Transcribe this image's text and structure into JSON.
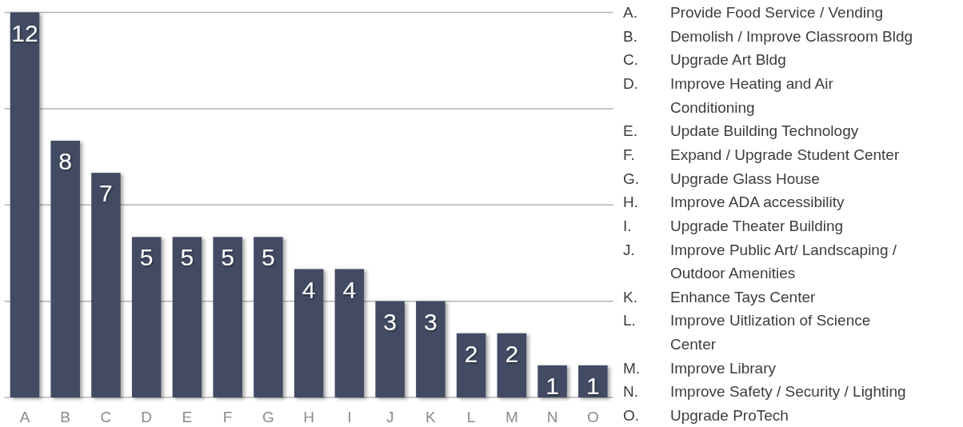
{
  "chart_data": {
    "type": "bar",
    "categories": [
      "A",
      "B",
      "C",
      "D",
      "E",
      "F",
      "G",
      "H",
      "I",
      "J",
      "K",
      "L",
      "M",
      "N",
      "O"
    ],
    "values": [
      12,
      8,
      7,
      5,
      5,
      5,
      5,
      4,
      4,
      3,
      3,
      2,
      2,
      1,
      1
    ],
    "color": "#434c63",
    "ylim": [
      0,
      12
    ],
    "yticks": [
      {
        "value": 0,
        "label": null
      },
      {
        "value": 3,
        "label": null
      },
      {
        "value": 6,
        "label": null
      },
      {
        "value": 9,
        "label": null
      },
      {
        "value": 12,
        "label": null
      }
    ],
    "grid": "y",
    "tick_labels": "x",
    "data_labels": true,
    "annotations": [
      "A. Provide Food Service / Vending",
      "B. Demolish / Improve Classroom Bldg",
      "C. Upgrade Art Bldg",
      "D. Improve Heating and Air Conditioning",
      "E. Update Building Technology",
      "F. Expand / Upgrade Student Center",
      "G. Upgrade Glass House",
      "H. Improve ADA accessibility",
      "I. Upgrade Theater Building",
      "J. Improve Public Art/ Landscaping / Outdoor Amenities",
      "K. Enhance Tays Center",
      "L. Improve Uitlization of Science Center",
      "M. Improve Library",
      "N. Improve Safety / Security / Lighting",
      "O. Upgrade ProTech"
    ]
  }
}
